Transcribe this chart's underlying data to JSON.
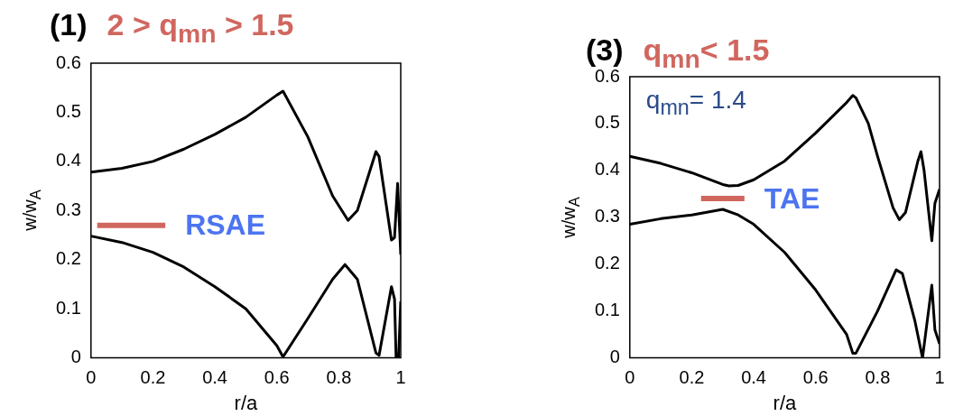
{
  "chart_data": [
    {
      "type": "line",
      "title": "(1)",
      "subtitle": "2 > q$_{mn}$ > 1.5",
      "xlabel": "r/a",
      "ylabel": "w/w$_{A}$",
      "xlim": [
        0,
        1
      ],
      "ylim": [
        0,
        0.6
      ],
      "xticks": [
        0,
        0.2,
        0.4,
        0.6,
        0.8,
        1
      ],
      "yticks": [
        0,
        0.1,
        0.2,
        0.3,
        0.4,
        0.5,
        0.6
      ],
      "marker": "none",
      "annotations": [
        "RSAE"
      ],
      "series": [
        {
          "color": "#000000",
          "x": [
            0,
            0.1,
            0.2,
            0.3,
            0.4,
            0.5,
            0.6,
            0.62,
            0.7,
            0.78,
            0.83,
            0.86,
            0.92,
            0.93,
            0.97,
            0.98,
            0.99,
            1
          ],
          "values": [
            0.378,
            0.386,
            0.4,
            0.425,
            0.455,
            0.49,
            0.535,
            0.543,
            0.45,
            0.33,
            0.28,
            0.3,
            0.42,
            0.41,
            0.24,
            0.245,
            0.355,
            0.21
          ]
        },
        {
          "color": "#000000",
          "x": [
            0,
            0.1,
            0.2,
            0.3,
            0.4,
            0.5,
            0.6,
            0.62,
            0.7,
            0.78,
            0.82,
            0.86,
            0.92,
            0.93,
            0.97,
            0.98,
            0.985,
            0.993,
            1
          ],
          "values": [
            0.248,
            0.235,
            0.215,
            0.185,
            0.145,
            0.1,
            0.025,
            0.002,
            0.08,
            0.16,
            0.19,
            0.16,
            0.01,
            0.005,
            0.145,
            0.12,
            0,
            0,
            0.115
          ]
        },
        {
          "color": "#d0675f",
          "x": [
            0.02,
            0.24
          ],
          "values": [
            0.27,
            0.27
          ]
        }
      ]
    },
    {
      "type": "line",
      "title": "(3)",
      "subtitle": "q$_{mn}$< 1.5",
      "xlabel": "r/a",
      "ylabel": "w/w$_{A}$",
      "xlim": [
        0,
        1
      ],
      "ylim": [
        0,
        0.6
      ],
      "xticks": [
        0,
        0.2,
        0.4,
        0.6,
        0.8,
        1
      ],
      "yticks": [
        0,
        0.1,
        0.2,
        0.3,
        0.4,
        0.5,
        0.6
      ],
      "marker": "none",
      "annotations": [
        "q$_{mn}$= 1.4",
        "TAE"
      ],
      "series": [
        {
          "color": "#000000",
          "x": [
            0,
            0.1,
            0.2,
            0.3,
            0.32,
            0.35,
            0.4,
            0.5,
            0.6,
            0.7,
            0.72,
            0.73,
            0.77,
            0.8,
            0.85,
            0.87,
            0.89,
            0.93,
            0.94,
            0.95,
            0.975,
            0.985,
            1
          ],
          "values": [
            0.43,
            0.415,
            0.395,
            0.37,
            0.367,
            0.368,
            0.38,
            0.42,
            0.48,
            0.545,
            0.56,
            0.555,
            0.5,
            0.43,
            0.32,
            0.295,
            0.31,
            0.42,
            0.44,
            0.4,
            0.25,
            0.33,
            0.36
          ]
        },
        {
          "color": "#000000",
          "x": [
            0,
            0.1,
            0.2,
            0.3,
            0.35,
            0.4,
            0.5,
            0.6,
            0.7,
            0.72,
            0.73,
            0.8,
            0.86,
            0.88,
            0.92,
            0.945,
            0.975,
            0.985,
            1
          ],
          "values": [
            0.285,
            0.297,
            0.305,
            0.317,
            0.305,
            0.285,
            0.225,
            0.145,
            0.05,
            0.01,
            0.01,
            0.1,
            0.188,
            0.18,
            0.08,
            0,
            0.155,
            0.06,
            0.03
          ]
        },
        {
          "color": "#d0675f",
          "x": [
            0.23,
            0.37
          ],
          "values": [
            0.34,
            0.34
          ]
        }
      ]
    }
  ]
}
